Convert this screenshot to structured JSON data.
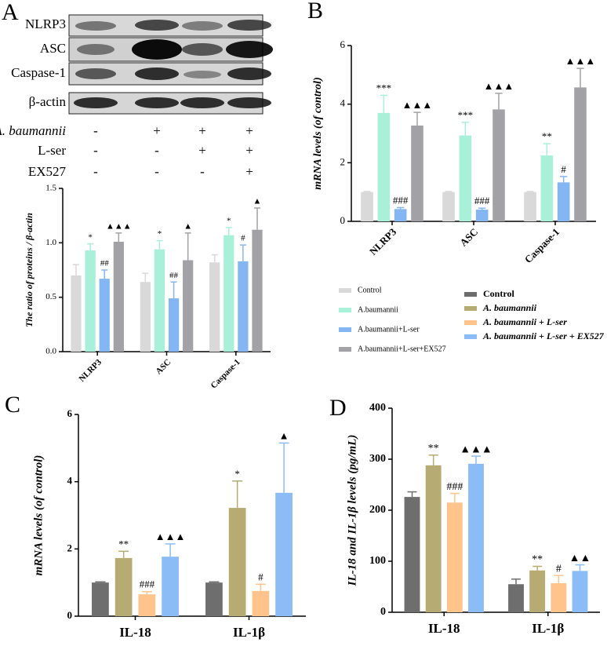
{
  "panel_labels": [
    "A",
    "B",
    "C",
    "D"
  ],
  "blot": {
    "proteins": [
      "NLRP3",
      "ASC",
      "Caspase-1",
      "β-actin"
    ],
    "treatments": [
      {
        "label": "A. baumannii",
        "signs": [
          "-",
          "+",
          "+",
          "+"
        ]
      },
      {
        "label": "L-ser",
        "signs": [
          "-",
          "-",
          "+",
          "+"
        ]
      },
      {
        "label": "EX527",
        "signs": [
          "-",
          "-",
          "-",
          "+"
        ]
      }
    ]
  },
  "chart_data": [
    {
      "type": "bar",
      "y_label": "The ratio of proteins / β-actin",
      "categories": [
        "NLRP3",
        "ASC",
        "Caspase-1"
      ],
      "ylim": [
        0,
        1.5
      ],
      "yticks": [
        {
          "value": 0,
          "label": "0.0"
        },
        0.5,
        {
          "value": 1,
          "label": "1.0"
        },
        1.5
      ],
      "series": [
        {
          "color": "#d9d9d9",
          "values": [
            0.7,
            0.64,
            0.82
          ],
          "errors": [
            0.1,
            0.08,
            0.07
          ],
          "annotations": [
            null,
            null,
            null
          ]
        },
        {
          "color": "#a9f0d8",
          "values": [
            0.93,
            0.94,
            1.07
          ],
          "errors": [
            0.06,
            0.08,
            0.07
          ],
          "annotations": [
            "*",
            "*",
            "*"
          ]
        },
        {
          "color": "#84b6f4",
          "values": [
            0.67,
            0.49,
            0.83
          ],
          "errors": [
            0.08,
            0.15,
            0.15
          ],
          "annotations": [
            "##",
            "##",
            "#"
          ]
        },
        {
          "color": "#a2a2a6",
          "values": [
            1.01,
            0.84,
            1.12
          ],
          "errors": [
            0.08,
            0.25,
            0.2
          ],
          "annotations": [
            "▲▲▲",
            "▲",
            "▲"
          ]
        }
      ]
    },
    {
      "type": "bar",
      "y_label": "mRNA levels (of control)",
      "categories": [
        "NLRP3",
        "ASC",
        "Caspase-1"
      ],
      "ylim": [
        0,
        6
      ],
      "yticks": [
        0,
        2,
        4,
        6
      ],
      "series": [
        {
          "name": "Control",
          "color": "#d9d9d9",
          "values": [
            1.0,
            1.0,
            1.0
          ],
          "errors": [
            0.02,
            0.02,
            0.02
          ],
          "annotations": [
            null,
            null,
            null
          ]
        },
        {
          "name": "A.baumannii",
          "color": "#a9f0d8",
          "values": [
            3.7,
            2.93,
            2.25
          ],
          "errors": [
            0.6,
            0.45,
            0.4
          ],
          "annotations": [
            "***",
            "***",
            "**"
          ]
        },
        {
          "name": "A.baumannii+L-ser",
          "color": "#84b6f4",
          "values": [
            0.42,
            0.4,
            1.33
          ],
          "errors": [
            0.05,
            0.05,
            0.2
          ],
          "annotations": [
            "###",
            "###",
            "#"
          ]
        },
        {
          "name": "A.baumannii+L-ser+EX527",
          "color": "#a2a2a6",
          "values": [
            3.27,
            3.82,
            4.57
          ],
          "errors": [
            0.45,
            0.55,
            0.65
          ],
          "annotations": [
            "▲▲▲",
            "▲▲▲",
            "▲▲▲"
          ]
        }
      ]
    },
    {
      "type": "bar",
      "y_label": "mRNA levels (of control)",
      "categories": [
        "IL-18",
        "IL-1β"
      ],
      "ylim": [
        0,
        6
      ],
      "yticks": [
        0,
        2,
        4,
        6
      ],
      "series": [
        {
          "name": "Control",
          "color": "#6e6e6e",
          "values": [
            1.0,
            1.0
          ],
          "errors": [
            0.02,
            0.02
          ],
          "annotations": [
            null,
            null
          ]
        },
        {
          "name": "A. baumannii",
          "color": "#b6ab73",
          "values": [
            1.73,
            3.22
          ],
          "errors": [
            0.2,
            0.8
          ],
          "annotations": [
            "**",
            "*"
          ]
        },
        {
          "name": "A. baumannii + L-ser",
          "color": "#ffc48c",
          "values": [
            0.65,
            0.75
          ],
          "errors": [
            0.08,
            0.2
          ],
          "annotations": [
            "###",
            "#"
          ]
        },
        {
          "name": "A. baumannii + L-ser + EX527",
          "color": "#8cbcf5",
          "values": [
            1.77,
            3.67
          ],
          "errors": [
            0.38,
            1.48
          ],
          "annotations": [
            "▲▲▲",
            "▲"
          ]
        }
      ]
    },
    {
      "type": "bar",
      "y_label": "IL-18 and IL-1β levels (pg/mL)",
      "categories": [
        "IL-18",
        "IL-1β"
      ],
      "ylim": [
        0,
        400
      ],
      "yticks": [
        0,
        100,
        200,
        300,
        400
      ],
      "series": [
        {
          "color": "#6e6e6e",
          "values": [
            226,
            55
          ],
          "errors": [
            10,
            10
          ],
          "annotations": [
            null,
            null
          ]
        },
        {
          "color": "#b6ab73",
          "values": [
            288,
            82
          ],
          "errors": [
            20,
            8
          ],
          "annotations": [
            "**",
            "**"
          ]
        },
        {
          "color": "#ffc48c",
          "values": [
            215,
            57
          ],
          "errors": [
            18,
            15
          ],
          "annotations": [
            "###",
            "#"
          ]
        },
        {
          "color": "#8cbcf5",
          "values": [
            291,
            81
          ],
          "errors": [
            15,
            12
          ],
          "annotations": [
            "▲▲▲",
            "▲▲"
          ]
        }
      ]
    }
  ]
}
